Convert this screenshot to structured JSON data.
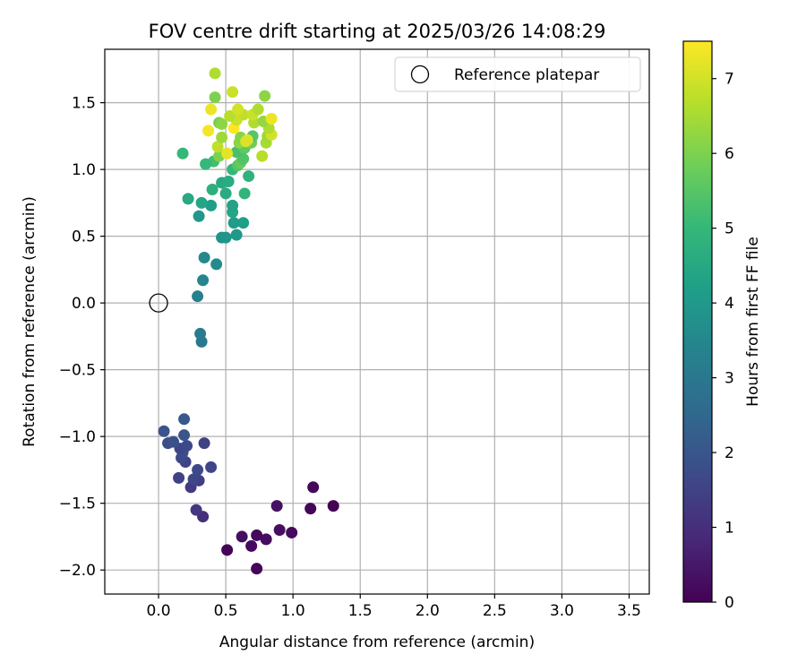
{
  "chart_data": {
    "type": "scatter",
    "title": "FOV centre drift starting at 2025/03/26 14:08:29",
    "xlabel": "Angular distance from reference (arcmin)",
    "ylabel": "Rotation from reference (arcmin)",
    "xlim": [
      -0.4,
      3.65
    ],
    "ylim": [
      -2.18,
      1.9
    ],
    "xticks": [
      0.0,
      0.5,
      1.0,
      1.5,
      2.0,
      2.5,
      3.0,
      3.5
    ],
    "xtick_labels": [
      "0.0",
      "0.5",
      "1.0",
      "1.5",
      "2.0",
      "2.5",
      "3.0",
      "3.5"
    ],
    "yticks": [
      1.5,
      1.0,
      0.5,
      0.0,
      -0.5,
      -1.0,
      -1.5,
      -2.0
    ],
    "ytick_labels": [
      "1.5",
      "1.0",
      "0.5",
      "0.0",
      "−0.5",
      "−1.0",
      "−1.5",
      "−2.0"
    ],
    "grid": true,
    "legend": {
      "position": "top-right",
      "entries": [
        "Reference platepar"
      ]
    },
    "reference_point": {
      "x": 0.0,
      "y": 0.0,
      "label": "Reference platepar"
    },
    "colorbar": {
      "label": "Hours from first FF file",
      "range": [
        0,
        7.5
      ],
      "ticks": [
        0,
        1,
        2,
        3,
        4,
        5,
        6,
        7
      ],
      "tick_labels": [
        "0",
        "1",
        "2",
        "3",
        "4",
        "5",
        "6",
        "7"
      ],
      "colormap": [
        "#440154",
        "#482878",
        "#3e4989",
        "#31688e",
        "#26828e",
        "#1f9e89",
        "#35b779",
        "#6ece58",
        "#b5de2b",
        "#fde725"
      ]
    },
    "series": [
      {
        "points": [
          {
            "x": 0.51,
            "y": -1.85,
            "c": 0.05
          },
          {
            "x": 0.73,
            "y": -1.99,
            "c": 0.1
          },
          {
            "x": 0.69,
            "y": -1.82,
            "c": 0.2
          },
          {
            "x": 0.8,
            "y": -1.77,
            "c": 0.25
          },
          {
            "x": 0.62,
            "y": -1.75,
            "c": 0.3
          },
          {
            "x": 0.73,
            "y": -1.74,
            "c": 0.15
          },
          {
            "x": 0.9,
            "y": -1.7,
            "c": 0.3
          },
          {
            "x": 0.99,
            "y": -1.72,
            "c": 0.2
          },
          {
            "x": 0.88,
            "y": -1.52,
            "c": 0.35
          },
          {
            "x": 1.13,
            "y": -1.54,
            "c": 0.1
          },
          {
            "x": 1.15,
            "y": -1.38,
            "c": 0.15
          },
          {
            "x": 1.3,
            "y": -1.52,
            "c": 0.05
          },
          {
            "x": 0.33,
            "y": -1.6,
            "c": 1.0
          },
          {
            "x": 0.28,
            "y": -1.55,
            "c": 1.2
          },
          {
            "x": 0.24,
            "y": -1.38,
            "c": 1.3
          },
          {
            "x": 0.3,
            "y": -1.33,
            "c": 1.4
          },
          {
            "x": 0.15,
            "y": -1.31,
            "c": 1.5
          },
          {
            "x": 0.26,
            "y": -1.32,
            "c": 1.6
          },
          {
            "x": 0.29,
            "y": -1.25,
            "c": 1.7
          },
          {
            "x": 0.39,
            "y": -1.23,
            "c": 1.6
          },
          {
            "x": 0.2,
            "y": -1.19,
            "c": 1.5
          },
          {
            "x": 0.17,
            "y": -1.16,
            "c": 1.7
          },
          {
            "x": 0.18,
            "y": -1.12,
            "c": 1.8
          },
          {
            "x": 0.16,
            "y": -1.09,
            "c": 1.6
          },
          {
            "x": 0.21,
            "y": -1.07,
            "c": 1.7
          },
          {
            "x": 0.34,
            "y": -1.05,
            "c": 1.5
          },
          {
            "x": 0.07,
            "y": -1.05,
            "c": 1.8
          },
          {
            "x": 0.11,
            "y": -1.04,
            "c": 1.9
          },
          {
            "x": 0.19,
            "y": -0.99,
            "c": 2.0
          },
          {
            "x": 0.04,
            "y": -0.96,
            "c": 2.0
          },
          {
            "x": 0.19,
            "y": -0.87,
            "c": 2.1
          },
          {
            "x": 0.32,
            "y": -0.29,
            "c": 3.0
          },
          {
            "x": 0.31,
            "y": -0.23,
            "c": 3.1
          },
          {
            "x": 0.29,
            "y": 0.05,
            "c": 3.3
          },
          {
            "x": 0.33,
            "y": 0.17,
            "c": 3.4
          },
          {
            "x": 0.43,
            "y": 0.29,
            "c": 3.6
          },
          {
            "x": 0.34,
            "y": 0.34,
            "c": 3.5
          },
          {
            "x": 0.47,
            "y": 0.49,
            "c": 3.8
          },
          {
            "x": 0.5,
            "y": 0.49,
            "c": 3.9
          },
          {
            "x": 0.58,
            "y": 0.51,
            "c": 4.0
          },
          {
            "x": 0.63,
            "y": 0.6,
            "c": 4.2
          },
          {
            "x": 0.56,
            "y": 0.6,
            "c": 4.1
          },
          {
            "x": 0.3,
            "y": 0.65,
            "c": 4.0
          },
          {
            "x": 0.55,
            "y": 0.68,
            "c": 4.4
          },
          {
            "x": 0.55,
            "y": 0.73,
            "c": 4.3
          },
          {
            "x": 0.39,
            "y": 0.73,
            "c": 4.2
          },
          {
            "x": 0.32,
            "y": 0.75,
            "c": 4.4
          },
          {
            "x": 0.22,
            "y": 0.78,
            "c": 4.5
          },
          {
            "x": 0.5,
            "y": 0.82,
            "c": 4.6
          },
          {
            "x": 0.64,
            "y": 0.82,
            "c": 4.9
          },
          {
            "x": 0.4,
            "y": 0.85,
            "c": 4.7
          },
          {
            "x": 0.47,
            "y": 0.9,
            "c": 4.5
          },
          {
            "x": 0.52,
            "y": 0.91,
            "c": 4.6
          },
          {
            "x": 0.67,
            "y": 0.95,
            "c": 4.8
          },
          {
            "x": 0.55,
            "y": 1.0,
            "c": 5.0
          },
          {
            "x": 0.41,
            "y": 1.06,
            "c": 5.2
          },
          {
            "x": 0.35,
            "y": 1.04,
            "c": 5.0
          },
          {
            "x": 0.18,
            "y": 1.12,
            "c": 5.0
          },
          {
            "x": 0.59,
            "y": 1.03,
            "c": 5.5
          },
          {
            "x": 0.61,
            "y": 1.05,
            "c": 5.7
          },
          {
            "x": 0.63,
            "y": 1.08,
            "c": 5.4
          },
          {
            "x": 0.45,
            "y": 1.1,
            "c": 6.0
          },
          {
            "x": 0.58,
            "y": 1.13,
            "c": 5.3
          },
          {
            "x": 0.64,
            "y": 1.16,
            "c": 5.6
          },
          {
            "x": 0.69,
            "y": 1.2,
            "c": 5.8
          },
          {
            "x": 0.6,
            "y": 1.2,
            "c": 6.2
          },
          {
            "x": 0.51,
            "y": 1.12,
            "c": 7.2
          },
          {
            "x": 0.44,
            "y": 1.17,
            "c": 6.8
          },
          {
            "x": 0.77,
            "y": 1.1,
            "c": 6.7
          },
          {
            "x": 0.8,
            "y": 1.2,
            "c": 6.5
          },
          {
            "x": 0.81,
            "y": 1.25,
            "c": 6.4
          },
          {
            "x": 0.84,
            "y": 1.26,
            "c": 7.0
          },
          {
            "x": 0.7,
            "y": 1.25,
            "c": 5.5
          },
          {
            "x": 0.47,
            "y": 1.24,
            "c": 6.4
          },
          {
            "x": 0.61,
            "y": 1.24,
            "c": 6.1
          },
          {
            "x": 0.37,
            "y": 1.29,
            "c": 7.4
          },
          {
            "x": 0.56,
            "y": 1.31,
            "c": 7.5
          },
          {
            "x": 0.82,
            "y": 1.31,
            "c": 6.6
          },
          {
            "x": 0.66,
            "y": 1.22,
            "c": 7.3
          },
          {
            "x": 0.65,
            "y": 1.21,
            "c": 7.1
          },
          {
            "x": 0.45,
            "y": 1.35,
            "c": 5.9
          },
          {
            "x": 0.47,
            "y": 1.34,
            "c": 6.2
          },
          {
            "x": 0.71,
            "y": 1.35,
            "c": 6.6
          },
          {
            "x": 0.78,
            "y": 1.36,
            "c": 6.3
          },
          {
            "x": 0.84,
            "y": 1.38,
            "c": 7.3
          },
          {
            "x": 0.58,
            "y": 1.37,
            "c": 6.9
          },
          {
            "x": 0.53,
            "y": 1.4,
            "c": 6.7
          },
          {
            "x": 0.63,
            "y": 1.41,
            "c": 6.8
          },
          {
            "x": 0.7,
            "y": 1.41,
            "c": 6.9
          },
          {
            "x": 0.74,
            "y": 1.45,
            "c": 6.6
          },
          {
            "x": 0.59,
            "y": 1.45,
            "c": 7.0
          },
          {
            "x": 0.39,
            "y": 1.45,
            "c": 7.3
          },
          {
            "x": 0.42,
            "y": 1.54,
            "c": 6.0
          },
          {
            "x": 0.55,
            "y": 1.58,
            "c": 6.9
          },
          {
            "x": 0.79,
            "y": 1.55,
            "c": 6.2
          },
          {
            "x": 0.42,
            "y": 1.72,
            "c": 6.6
          }
        ]
      }
    ]
  }
}
